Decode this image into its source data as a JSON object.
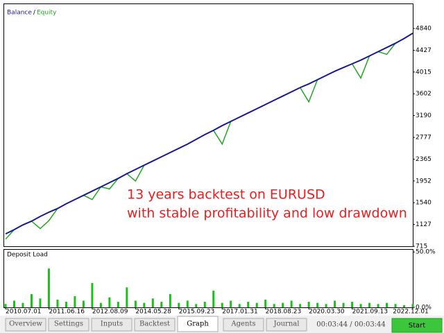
{
  "chart_data": [
    {
      "type": "line",
      "legend": "top-left",
      "legend_separator": "/",
      "annotation": [
        "13 years backtest on EURUSD",
        "with stable profitability and low drawdown"
      ],
      "annotation_color": "#ee1c1c",
      "categories": [
        "2010.07.01",
        null,
        null,
        null,
        null,
        "2011.06.16",
        null,
        null,
        null,
        null,
        "2012.08.09",
        null,
        null,
        null,
        null,
        "2014.05.28",
        null,
        null,
        null,
        null,
        "2015.09.23",
        null,
        null,
        null,
        null,
        "2017.01.31",
        null,
        null,
        null,
        null,
        "2018.08.23",
        null,
        null,
        null,
        null,
        "2020.03.30",
        null,
        null,
        null,
        null,
        "2021.09.13",
        null,
        null,
        null,
        null,
        null,
        null,
        "2022.12.01"
      ],
      "series": [
        {
          "name": "Balance",
          "color": "#1a1a8c",
          "values": [
            950,
            1030,
            1120,
            1190,
            1280,
            1360,
            1430,
            1520,
            1600,
            1680,
            1760,
            1840,
            1920,
            2000,
            2090,
            2170,
            2250,
            2330,
            2410,
            2490,
            2570,
            2650,
            2740,
            2830,
            2910,
            3000,
            3080,
            3160,
            3240,
            3320,
            3400,
            3480,
            3560,
            3640,
            3720,
            3790,
            3870,
            3950,
            4030,
            4100,
            4170,
            4240,
            4320,
            4400,
            4480,
            4560,
            4650,
            4750
          ]
        },
        {
          "name": "Equity",
          "color": "#1fa81f",
          "values": [
            850,
            1030,
            1120,
            1190,
            1050,
            1200,
            1430,
            1520,
            1600,
            1680,
            1600,
            1840,
            1800,
            2000,
            2090,
            1950,
            2250,
            2330,
            2410,
            2490,
            2570,
            2650,
            2740,
            2830,
            2910,
            2650,
            3080,
            3160,
            3240,
            3320,
            3400,
            3480,
            3560,
            3640,
            3720,
            3450,
            3870,
            3950,
            4030,
            4100,
            4170,
            3900,
            4320,
            4400,
            4350,
            4560,
            4650,
            4750
          ]
        }
      ],
      "ylim": [
        715,
        5300
      ],
      "yticks": [
        715,
        1127,
        1540,
        1952,
        2365,
        2777,
        3190,
        3602,
        4015,
        4427,
        4840
      ],
      "grid": false
    },
    {
      "type": "bar",
      "title": "Deposit Load",
      "color": "#19c219",
      "values": [
        3,
        6,
        4,
        12,
        8,
        35,
        7,
        5,
        10,
        6,
        22,
        4,
        9,
        5,
        18,
        6,
        4,
        8,
        5,
        12,
        4,
        6,
        3,
        5,
        15,
        4,
        6,
        3,
        5,
        4,
        7,
        3,
        4,
        6,
        3,
        5,
        4,
        3,
        6,
        4,
        5,
        3,
        4,
        3,
        4,
        3,
        2,
        3
      ],
      "ylim": [
        0,
        52
      ],
      "yticks": [
        {
          "value": 50,
          "label": "50.0%"
        },
        {
          "value": 0,
          "label": "0.0%"
        }
      ],
      "grid": false
    }
  ],
  "tabs": [
    "Overview",
    "Settings",
    "Inputs",
    "Backtest",
    "Graph",
    "Agents",
    "Journal"
  ],
  "active_tab": 4,
  "timer": "00:03:44 / 00:03:44",
  "start_button": "Start"
}
